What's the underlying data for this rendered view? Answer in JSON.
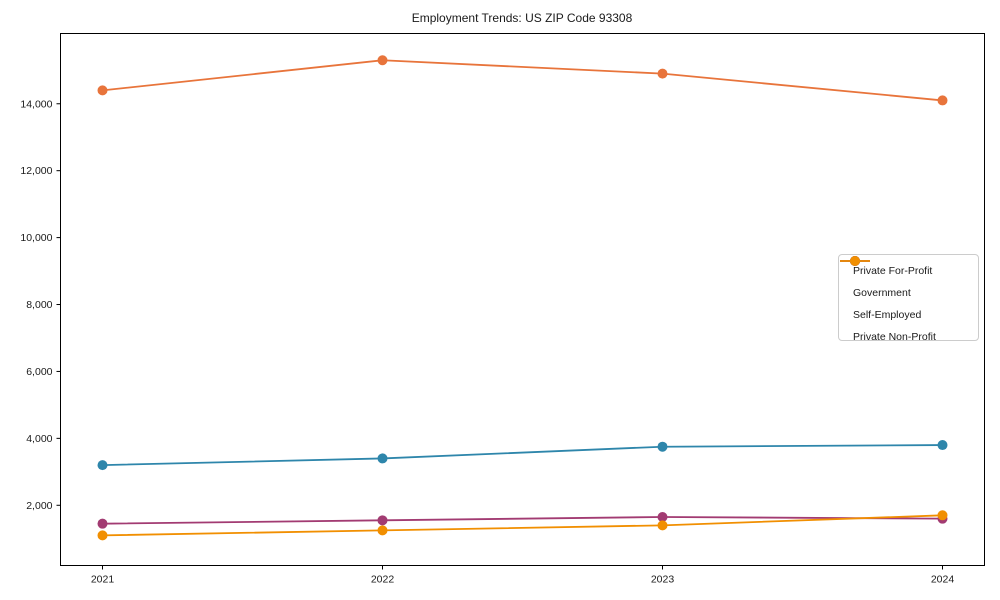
{
  "title": "Employment Trends: US ZIP Code 93308",
  "chart_data": {
    "type": "line",
    "title": "Employment Trends: US ZIP Code 93308",
    "xlabel": "",
    "ylabel": "",
    "x": [
      2021,
      2022,
      2023,
      2024
    ],
    "categories": [
      "2021",
      "2022",
      "2023",
      "2024"
    ],
    "series": [
      {
        "name": "Private For-Profit",
        "color": "#E8743B",
        "values": [
          14400,
          15300,
          14900,
          14100
        ]
      },
      {
        "name": "Government",
        "color": "#2E86AB",
        "values": [
          3200,
          3400,
          3750,
          3800
        ]
      },
      {
        "name": "Self-Employed",
        "color": "#A23B72",
        "values": [
          1450,
          1550,
          1650,
          1600
        ]
      },
      {
        "name": "Private Non-Profit",
        "color": "#F18F01",
        "values": [
          1100,
          1250,
          1400,
          1700
        ]
      }
    ],
    "yticks": [
      2000,
      4000,
      6000,
      8000,
      10000,
      12000,
      14000
    ],
    "ytick_labels": [
      "2,000",
      "4,000",
      "6,000",
      "8,000",
      "10,000",
      "12,000",
      "14,000"
    ],
    "xtick_labels": [
      "2021",
      "2022",
      "2023",
      "2024"
    ],
    "ylim": [
      200,
      16100
    ],
    "xlim": [
      2020.85,
      2024.15
    ],
    "grid": false,
    "legend_position": "center-right",
    "axis_color": "#000000"
  }
}
